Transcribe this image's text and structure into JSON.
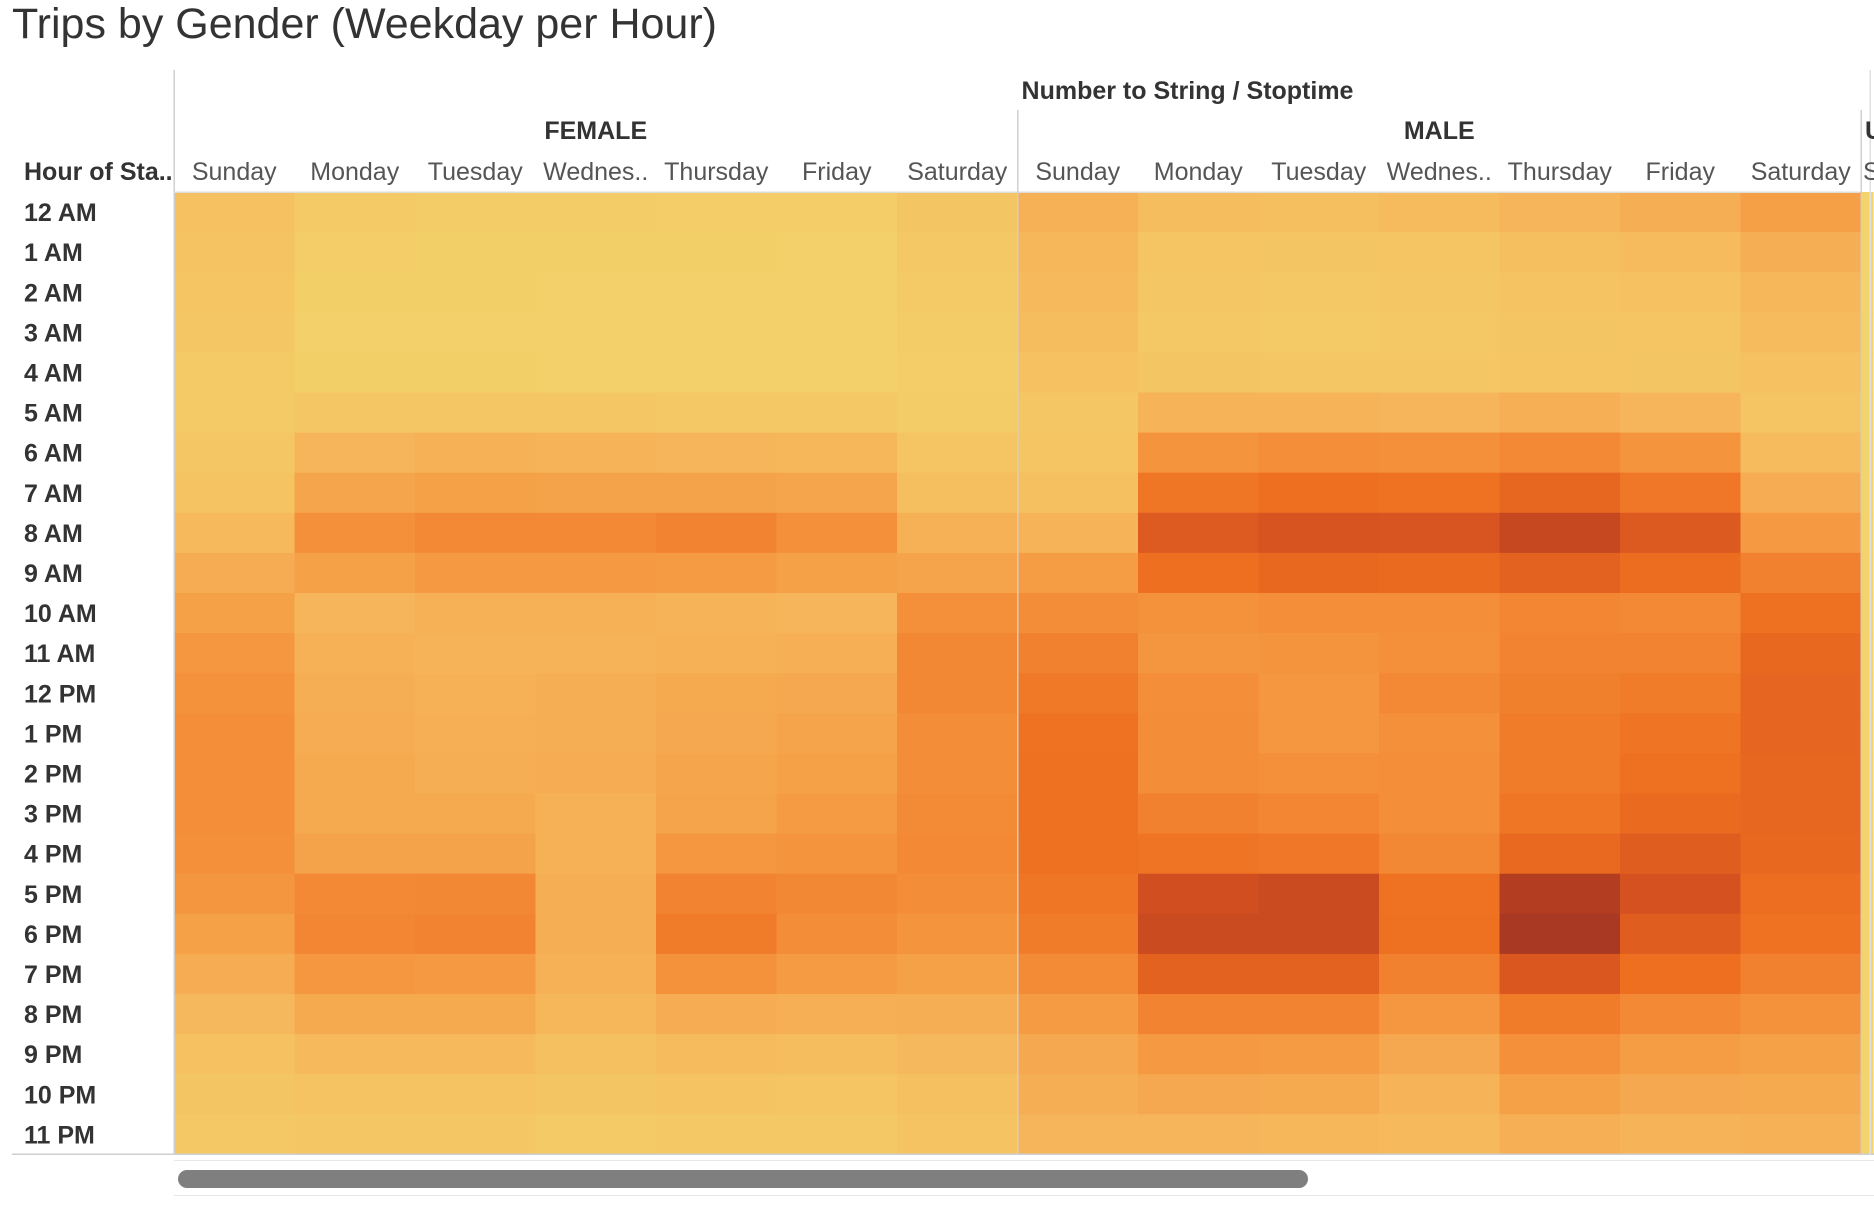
{
  "title": "Trips by Gender (Weekday per Hour)",
  "chart_data": {
    "type": "heatmap",
    "title": "Trips by Gender (Weekday per Hour)",
    "column_header": "Number to String / Stoptime",
    "row_header": "Hour of Sta..",
    "groups": [
      {
        "name": "FEMALE",
        "days": [
          "Sunday",
          "Monday",
          "Tuesday",
          "Wednes..",
          "Thursday",
          "Friday",
          "Saturday"
        ]
      },
      {
        "name": "MALE",
        "days": [
          "Sunday",
          "Monday",
          "Tuesday",
          "Wednes..",
          "Thursday",
          "Friday",
          "Saturday"
        ]
      },
      {
        "name": "U",
        "days": [
          "S"
        ]
      }
    ],
    "rows": [
      "12 AM",
      "1 AM",
      "2 AM",
      "3 AM",
      "4 AM",
      "5 AM",
      "6 AM",
      "7 AM",
      "8 AM",
      "9 AM",
      "10 AM",
      "11 AM",
      "12 PM",
      "1 PM",
      "2 PM",
      "3 PM",
      "4 PM",
      "5 PM",
      "6 PM",
      "7 PM",
      "8 PM",
      "9 PM",
      "10 PM",
      "11 PM"
    ],
    "color_scale": [
      "#f3d36b",
      "#f6b55a",
      "#f4903a",
      "#ee6f20",
      "#d65120",
      "#9e3322"
    ],
    "intensity_scale": [
      0,
      100
    ],
    "values": [
      [
        12,
        6,
        5,
        5,
        4,
        4,
        9,
        22,
        15,
        14,
        16,
        20,
        24,
        32,
        0
      ],
      [
        11,
        4,
        3,
        3,
        3,
        2,
        7,
        19,
        10,
        9,
        10,
        14,
        16,
        24,
        0
      ],
      [
        10,
        3,
        3,
        2,
        2,
        2,
        6,
        17,
        8,
        7,
        8,
        11,
        12,
        19,
        0
      ],
      [
        8,
        2,
        2,
        2,
        2,
        2,
        5,
        15,
        7,
        6,
        7,
        9,
        10,
        16,
        0
      ],
      [
        6,
        3,
        3,
        2,
        2,
        2,
        4,
        12,
        9,
        8,
        8,
        10,
        9,
        12,
        0
      ],
      [
        6,
        8,
        8,
        8,
        7,
        7,
        5,
        8,
        21,
        21,
        20,
        23,
        20,
        10,
        0
      ],
      [
        8,
        20,
        22,
        21,
        20,
        19,
        10,
        10,
        38,
        41,
        40,
        44,
        38,
        16,
        0
      ],
      [
        11,
        28,
        31,
        30,
        30,
        28,
        14,
        13,
        56,
        60,
        58,
        66,
        55,
        25,
        0
      ],
      [
        17,
        40,
        44,
        44,
        47,
        40,
        22,
        21,
        74,
        79,
        78,
        86,
        75,
        35,
        0
      ],
      [
        25,
        31,
        35,
        35,
        34,
        31,
        29,
        33,
        60,
        65,
        63,
        69,
        62,
        49,
        0
      ],
      [
        31,
        20,
        22,
        22,
        21,
        20,
        40,
        42,
        39,
        41,
        41,
        46,
        44,
        59,
        0
      ],
      [
        36,
        22,
        21,
        21,
        22,
        23,
        45,
        49,
        37,
        38,
        40,
        47,
        47,
        65,
        0
      ],
      [
        39,
        24,
        22,
        24,
        26,
        27,
        45,
        54,
        41,
        36,
        44,
        50,
        52,
        67,
        0
      ],
      [
        41,
        25,
        23,
        24,
        27,
        29,
        42,
        58,
        42,
        36,
        40,
        52,
        57,
        67,
        0
      ],
      [
        41,
        26,
        24,
        25,
        28,
        31,
        42,
        59,
        42,
        40,
        41,
        53,
        59,
        66,
        0
      ],
      [
        41,
        26,
        26,
        22,
        29,
        34,
        43,
        59,
        49,
        46,
        41,
        56,
        63,
        66,
        0
      ],
      [
        40,
        30,
        30,
        22,
        36,
        38,
        44,
        59,
        57,
        55,
        45,
        64,
        72,
        65,
        0
      ],
      [
        37,
        44,
        45,
        24,
        48,
        45,
        42,
        56,
        82,
        84,
        58,
        93,
        80,
        61,
        0
      ],
      [
        31,
        46,
        47,
        24,
        52,
        42,
        38,
        52,
        84,
        84,
        59,
        96,
        72,
        58,
        0
      ],
      [
        25,
        36,
        35,
        22,
        39,
        34,
        31,
        43,
        69,
        69,
        49,
        76,
        60,
        49,
        0
      ],
      [
        18,
        26,
        26,
        19,
        25,
        23,
        24,
        34,
        48,
        48,
        36,
        52,
        44,
        39,
        0
      ],
      [
        12,
        17,
        17,
        13,
        16,
        15,
        18,
        27,
        35,
        34,
        27,
        40,
        33,
        31,
        0
      ],
      [
        9,
        11,
        11,
        9,
        11,
        10,
        13,
        24,
        27,
        26,
        21,
        31,
        27,
        26,
        0
      ],
      [
        7,
        8,
        8,
        6,
        7,
        7,
        11,
        20,
        20,
        19,
        17,
        23,
        21,
        22,
        0
      ]
    ]
  }
}
